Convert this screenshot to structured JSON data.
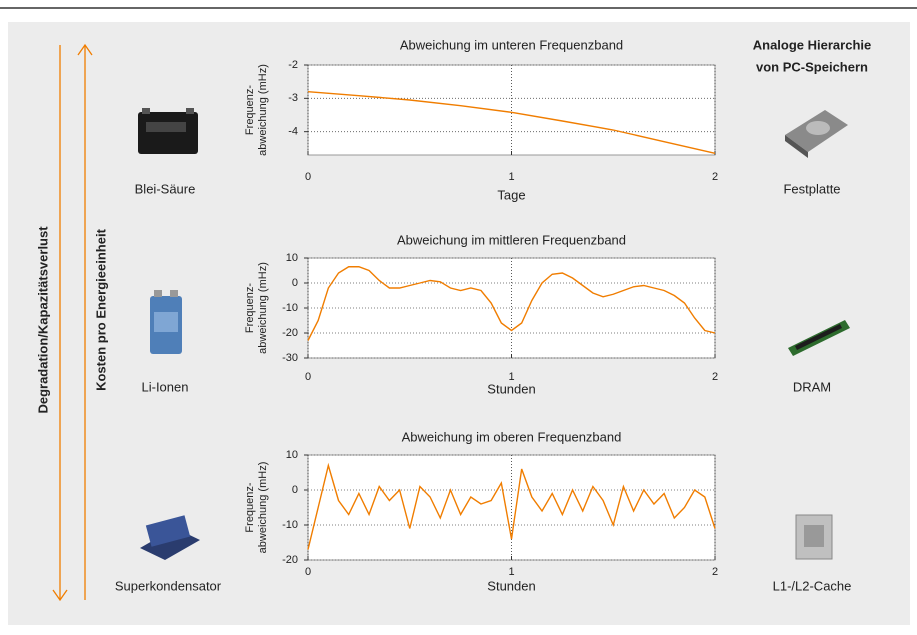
{
  "left_labels": {
    "degradation": "Degradation/Kapazitätsverlust",
    "cost": "Kosten pro Energieeinheit"
  },
  "batteries": [
    "Blei-Säure",
    "Li-Ionen",
    "Superkondensator"
  ],
  "right_title": [
    "Analoge Hierarchie",
    "von PC-Speichern"
  ],
  "storage": [
    "Festplatte",
    "DRAM",
    "L1-/L2-Cache"
  ],
  "chart_data": [
    {
      "type": "line",
      "title": "Abweichung im unteren Frequenzband",
      "x_label": "Tage",
      "y_label": [
        "Frequenz-",
        "abweichung (mHz)"
      ],
      "x": [
        0,
        0.25,
        0.5,
        0.75,
        1,
        1.25,
        1.5,
        1.75,
        2
      ],
      "values": [
        -2.8,
        -2.92,
        -3.05,
        -3.22,
        -3.42,
        -3.68,
        -3.95,
        -4.3,
        -4.65
      ],
      "color": "#f07d00",
      "xlim": [
        0,
        2
      ],
      "xticks": [
        0,
        1,
        2
      ],
      "ylim": [
        -4.7,
        -2
      ],
      "yticks": [
        -2,
        -3,
        -4
      ],
      "grid": true
    },
    {
      "type": "line",
      "title": "Abweichung im mittleren Frequenzband",
      "x_label": "Stunden",
      "y_label": [
        "Frequenz-",
        "abweichung (mHz)"
      ],
      "x": [
        0,
        0.05,
        0.1,
        0.15,
        0.2,
        0.25,
        0.3,
        0.35,
        0.4,
        0.45,
        0.5,
        0.55,
        0.6,
        0.65,
        0.7,
        0.75,
        0.8,
        0.85,
        0.9,
        0.95,
        1,
        1.05,
        1.1,
        1.15,
        1.2,
        1.25,
        1.3,
        1.35,
        1.4,
        1.45,
        1.5,
        1.55,
        1.6,
        1.65,
        1.7,
        1.75,
        1.8,
        1.85,
        1.9,
        1.95,
        2
      ],
      "values": [
        -23,
        -15,
        -2,
        4,
        6.5,
        6.5,
        5,
        1,
        -2,
        -2,
        -1,
        0,
        1,
        0.5,
        -2,
        -3,
        -2,
        -3,
        -8,
        -16,
        -19,
        -16,
        -7,
        0,
        3.5,
        4,
        2,
        -1,
        -4,
        -5.5,
        -4.5,
        -3,
        -1.5,
        -1,
        -2,
        -3,
        -5,
        -8,
        -14,
        -19,
        -20
      ],
      "color": "#f07d00",
      "xlim": [
        0,
        2
      ],
      "xticks": [
        0,
        1,
        2
      ],
      "ylim": [
        -30,
        10
      ],
      "yticks": [
        10,
        0,
        -10,
        -20,
        -30
      ],
      "grid": true
    },
    {
      "type": "line",
      "title": "Abweichung im oberen Frequenzband",
      "x_label": "Stunden",
      "y_label": [
        "Frequenz-",
        "abweichung (mHz)"
      ],
      "x": [
        0,
        0.05,
        0.1,
        0.15,
        0.2,
        0.25,
        0.3,
        0.35,
        0.4,
        0.45,
        0.5,
        0.55,
        0.6,
        0.65,
        0.7,
        0.75,
        0.8,
        0.85,
        0.9,
        0.95,
        1,
        1.05,
        1.1,
        1.15,
        1.2,
        1.25,
        1.3,
        1.35,
        1.4,
        1.45,
        1.5,
        1.55,
        1.6,
        1.65,
        1.7,
        1.75,
        1.8,
        1.85,
        1.9,
        1.95,
        2
      ],
      "values": [
        -17,
        -5,
        7,
        -3,
        -7,
        -1,
        -7,
        1,
        -3,
        0,
        -11,
        1,
        -2,
        -8,
        0,
        -7,
        -2,
        -4,
        -3,
        2,
        -14,
        6,
        -2,
        -6,
        -1,
        -7,
        0,
        -6,
        1,
        -3,
        -10,
        1,
        -6,
        0,
        -4,
        -1,
        -8,
        -5,
        0,
        -2,
        -11
      ],
      "color": "#f07d00",
      "xlim": [
        0,
        2
      ],
      "xticks": [
        0,
        1,
        2
      ],
      "ylim": [
        -20,
        10
      ],
      "yticks": [
        10,
        0,
        -10,
        -20
      ],
      "grid": true
    }
  ]
}
